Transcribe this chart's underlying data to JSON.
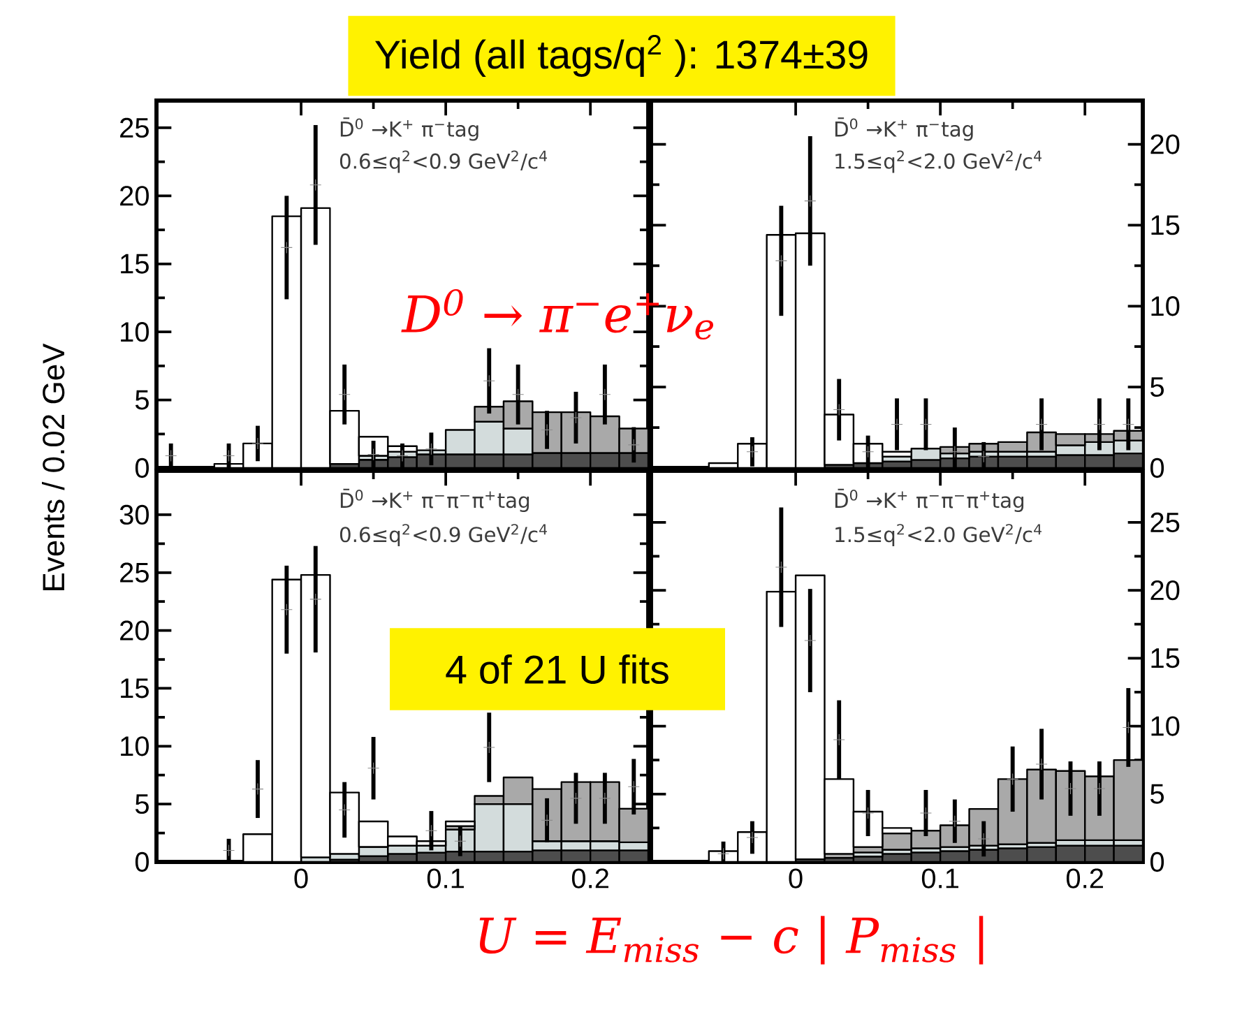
{
  "chart_data": [
    {
      "type": "bar",
      "title": "D̄$^{0}$ →K$^{+}$ π$^{−}$tag",
      "subtitle": "0.6≤q$^{2}$<0.9 GeV$^{2}$/c$^{4}$",
      "ylabel": "Events / 0.02 GeV",
      "annotations": [
        "Yield (all tags/q$^{2}$ ): 1374±39",
        "D$^{0}$ → π$^{−}$e$^{+}$ν$_{e}$"
      ],
      "x": [
        -0.09,
        -0.07,
        -0.05,
        -0.03,
        -0.01,
        0.01,
        0.03,
        0.05,
        0.07,
        0.09,
        0.11,
        0.13,
        0.15,
        0.17,
        0.19,
        0.21,
        0.23
      ],
      "stacked": true,
      "xlim": [
        -0.1,
        0.24
      ],
      "ylim": [
        0,
        27
      ],
      "xticks": [
        0,
        0.1,
        0.2
      ],
      "yticks": [
        0,
        5,
        10,
        15,
        20,
        25
      ],
      "tick_labels": "y",
      "series": [
        {
          "color": "#4d4d4d",
          "values": [
            0,
            0,
            0,
            0,
            0,
            0,
            0.3,
            0.6,
            0.8,
            1.0,
            1.0,
            1.0,
            1.0,
            1.1,
            1.1,
            1.1,
            1.1
          ]
        },
        {
          "color": "#d3dcdc",
          "values": [
            0,
            0,
            0,
            0,
            0,
            0,
            0,
            0.3,
            0.4,
            0.3,
            1.8,
            2.4,
            1.9,
            0,
            0,
            0,
            0
          ]
        },
        {
          "color": "#a9a9a9",
          "values": [
            0,
            0,
            0,
            0,
            0,
            0,
            0,
            0,
            0,
            0,
            0,
            1.1,
            2.0,
            3.0,
            3.0,
            2.7,
            1.8
          ]
        },
        {
          "color": "#ffffff",
          "values": [
            0,
            0,
            0.3,
            1.8,
            18.5,
            19.1,
            3.9,
            1.4,
            0.4,
            0,
            0,
            0,
            0,
            0,
            0,
            0,
            0
          ]
        },
        {
          "type": "scatter",
          "color": "#8c8c8c",
          "marker": "cross",
          "x": [
            -0.09,
            -0.05,
            -0.03,
            -0.01,
            0.01,
            0.03,
            0.05,
            0.07,
            0.09,
            0.13,
            0.15,
            0.17,
            0.19,
            0.21,
            0.23
          ],
          "values": [
            0.9,
            0.9,
            1.8,
            16.2,
            20.8,
            5.4,
            1.0,
            0.9,
            1.4,
            6.4,
            5.4,
            2.8,
            3.7,
            5.4,
            1.7
          ],
          "errors": [
            0.9,
            0.9,
            1.3,
            3.8,
            4.4,
            2.2,
            1.0,
            0.9,
            1.2,
            2.4,
            2.2,
            1.4,
            1.9,
            2.2,
            1.3
          ]
        }
      ]
    },
    {
      "type": "bar",
      "title": "D̄$^{0}$ →K$^{+}$ π$^{−}$tag",
      "subtitle": "1.5≤q$^{2}$<2.0 GeV$^{2}$/c$^{4}$",
      "x": [
        -0.09,
        -0.07,
        -0.05,
        -0.03,
        -0.01,
        0.01,
        0.03,
        0.05,
        0.07,
        0.09,
        0.11,
        0.13,
        0.15,
        0.17,
        0.19,
        0.21,
        0.23
      ],
      "stacked": true,
      "xlim": [
        -0.1,
        0.24
      ],
      "ylim": [
        0,
        22.7
      ],
      "xticks": [
        0,
        0.1,
        0.2
      ],
      "yticks": [
        0,
        5,
        10,
        15,
        20
      ],
      "tick_labels": "y",
      "series": [
        {
          "color": "#4d4d4d",
          "values": [
            0,
            0,
            0,
            0,
            0,
            0,
            0.2,
            0.3,
            0.4,
            0.5,
            0.6,
            0.7,
            0.7,
            0.7,
            0.8,
            0.8,
            0.9
          ]
        },
        {
          "color": "#d3dcdc",
          "values": [
            0,
            0,
            0,
            0,
            0,
            0,
            0,
            0,
            0.3,
            0.7,
            0.3,
            0.3,
            0.3,
            0.3,
            0.6,
            0.8,
            0.8
          ]
        },
        {
          "color": "#a9a9a9",
          "values": [
            0,
            0,
            0,
            0,
            0,
            0,
            0,
            0,
            0,
            0,
            0.4,
            0.5,
            0.6,
            1.2,
            0.7,
            0.5,
            0.6
          ]
        },
        {
          "color": "#ffffff",
          "values": [
            0,
            0,
            0.3,
            1.5,
            14.4,
            14.5,
            3.1,
            1.2,
            0.3,
            0,
            0,
            0,
            0,
            0,
            0,
            0,
            0
          ]
        },
        {
          "type": "scatter",
          "color": "#8c8c8c",
          "marker": "cross",
          "x": [
            -0.03,
            -0.01,
            0.01,
            0.03,
            0.05,
            0.07,
            0.09,
            0.11,
            0.13,
            0.17,
            0.21,
            0.23
          ],
          "values": [
            1.0,
            12.8,
            16.5,
            3.6,
            1.0,
            2.7,
            2.7,
            1.0,
            0.7,
            2.7,
            2.7,
            2.7
          ],
          "errors": [
            0.9,
            3.4,
            4.0,
            1.9,
            1.0,
            1.6,
            1.6,
            1.5,
            0.9,
            1.6,
            1.6,
            1.6
          ]
        }
      ]
    },
    {
      "type": "bar",
      "title": "D̄$^{0}$ →K$^{+}$ π$^{−}$π$^{−}$π$^{+}$tag",
      "subtitle": "0.6≤q$^{2}$<0.9 GeV$^{2}$/c$^{4}$",
      "xlabel": "U = E$_{miss}$ − c | P$_{miss}$ |",
      "annotations": [
        "4 of 21 U fits"
      ],
      "x": [
        -0.09,
        -0.07,
        -0.05,
        -0.03,
        -0.01,
        0.01,
        0.03,
        0.05,
        0.07,
        0.09,
        0.11,
        0.13,
        0.15,
        0.17,
        0.19,
        0.21,
        0.23
      ],
      "stacked": true,
      "xlim": [
        -0.1,
        0.24
      ],
      "ylim": [
        0,
        33.8
      ],
      "xticks": [
        0,
        0.1,
        0.2
      ],
      "yticks": [
        0,
        5,
        10,
        15,
        20,
        25,
        30
      ],
      "series": [
        {
          "color": "#4d4d4d",
          "values": [
            0,
            0,
            0,
            0,
            0,
            0,
            0.2,
            0.5,
            0.7,
            0.8,
            0.9,
            0.9,
            0.9,
            1.0,
            1.0,
            1.0,
            1.0
          ]
        },
        {
          "color": "#d3dcdc",
          "values": [
            0,
            0,
            0,
            0,
            0,
            0.4,
            0.5,
            0.8,
            0.7,
            0.6,
            1.9,
            4.1,
            4.1,
            0.8,
            0.8,
            0.8,
            0.7
          ]
        },
        {
          "color": "#a9a9a9",
          "values": [
            0,
            0,
            0,
            0,
            0,
            0,
            0,
            0,
            0,
            0,
            0.3,
            0.7,
            2.3,
            4.5,
            5.1,
            5.1,
            2.9
          ]
        },
        {
          "color": "#ffffff",
          "values": [
            0,
            0,
            0,
            2.4,
            24.4,
            24.4,
            5.3,
            2.2,
            0.8,
            0.4,
            0.4,
            0,
            0,
            0,
            0,
            0,
            0
          ]
        },
        {
          "type": "scatter",
          "color": "#8c8c8c",
          "marker": "cross",
          "x": [
            -0.05,
            -0.03,
            -0.01,
            0.01,
            0.03,
            0.05,
            0.09,
            0.11,
            0.13,
            0.15,
            0.17,
            0.19,
            0.21,
            0.23
          ],
          "values": [
            1.0,
            6.3,
            21.8,
            22.7,
            4.5,
            8.1,
            2.7,
            1.8,
            9.9,
            null,
            3.6,
            5.5,
            5.5,
            6.5
          ],
          "errors": [
            1.0,
            2.5,
            3.8,
            4.6,
            2.4,
            2.7,
            1.7,
            1.3,
            3.0,
            null,
            1.9,
            2.2,
            2.2,
            2.4
          ]
        }
      ]
    },
    {
      "type": "bar",
      "title": "D̄$^{0}$ →K$^{+}$ π$^{−}$π$^{−}$π$^{+}$tag",
      "subtitle": "1.5≤q$^{2}$<2.0 GeV$^{2}$/c$^{4}$",
      "x": [
        -0.09,
        -0.07,
        -0.05,
        -0.03,
        -0.01,
        0.01,
        0.03,
        0.05,
        0.07,
        0.09,
        0.11,
        0.13,
        0.15,
        0.17,
        0.19,
        0.21,
        0.23
      ],
      "stacked": true,
      "xlim": [
        -0.1,
        0.24
      ],
      "ylim": [
        0,
        28.8
      ],
      "xticks": [
        0,
        0.1,
        0.2
      ],
      "yticks": [
        0,
        5,
        10,
        15,
        20,
        25
      ],
      "series": [
        {
          "color": "#4d4d4d",
          "values": [
            0,
            0,
            0,
            0,
            0,
            0.2,
            0.3,
            0.4,
            0.6,
            0.7,
            0.8,
            0.9,
            1.0,
            1.1,
            1.2,
            1.2,
            1.2
          ]
        },
        {
          "color": "#d3dcdc",
          "values": [
            0,
            0,
            0,
            0,
            0,
            0,
            0,
            0.3,
            0.3,
            0.3,
            0.3,
            0.3,
            0.3,
            0.3,
            0.4,
            0.4,
            0.4
          ]
        },
        {
          "color": "#a9a9a9",
          "values": [
            0,
            0,
            0,
            0,
            0,
            0,
            0.3,
            0.4,
            1.2,
            1.3,
            1.6,
            2.7,
            4.8,
            5.4,
            5.1,
            4.7,
            5.9
          ]
        },
        {
          "color": "#ffffff",
          "values": [
            0,
            0,
            0.8,
            2.2,
            19.9,
            20.9,
            5.5,
            2.6,
            0.4,
            0,
            0,
            0,
            0,
            0,
            0,
            0,
            0
          ]
        },
        {
          "type": "scatter",
          "color": "#8c8c8c",
          "marker": "cross",
          "x": [
            -0.05,
            -0.03,
            -0.01,
            0.01,
            0.03,
            0.05,
            0.09,
            0.11,
            0.13,
            0.15,
            0.17,
            0.19,
            0.21,
            0.23
          ],
          "values": [
            0.6,
            1.8,
            21.7,
            16.3,
            9.0,
            3.6,
            3.6,
            3.0,
            1.7,
            6.1,
            7.2,
            5.4,
            5.4,
            9.9
          ],
          "errors": [
            0.9,
            1.2,
            4.4,
            3.8,
            2.9,
            1.7,
            1.7,
            1.6,
            1.3,
            2.4,
            2.6,
            2.0,
            2.0,
            2.9
          ]
        }
      ]
    }
  ]
}
